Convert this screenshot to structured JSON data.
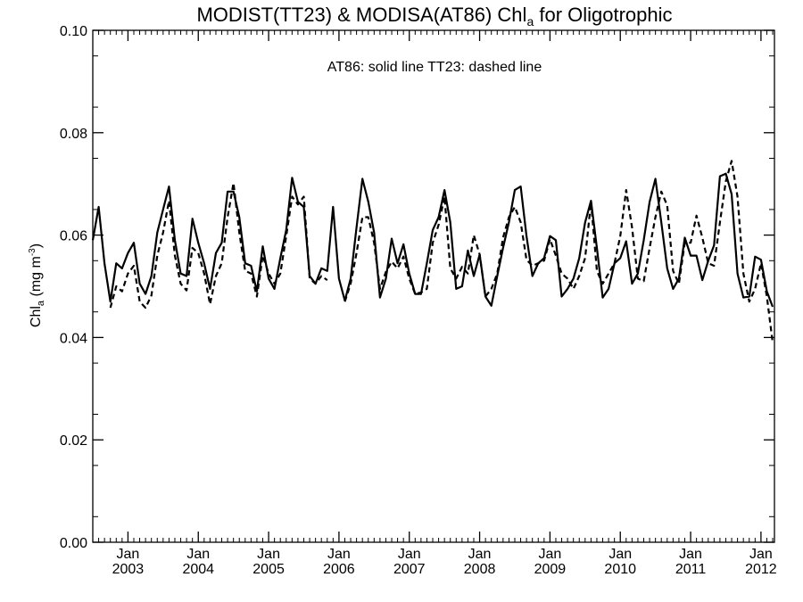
{
  "chart_data": {
    "type": "line",
    "title_main": "MODIST(TT23) & MODISA(AT86)  Chl",
    "title_sub": "a",
    "title_tail": " for Oligotrophic",
    "annotation": "AT86: solid line   TT23: dashed line",
    "ylabel_main": "Chl",
    "ylabel_sub": "a",
    "ylabel_units": " (mg m",
    "ylabel_exp": "-3",
    "ylabel_close": ")",
    "ylim": [
      0.0,
      0.1
    ],
    "y_ticks": [
      "0.00",
      "0.02",
      "0.04",
      "0.06",
      "0.08",
      "0.10"
    ],
    "x_ticks": [
      {
        "month": "Jan",
        "year": "2003"
      },
      {
        "month": "Jan",
        "year": "2004"
      },
      {
        "month": "Jan",
        "year": "2005"
      },
      {
        "month": "Jan",
        "year": "2006"
      },
      {
        "month": "Jan",
        "year": "2007"
      },
      {
        "month": "Jan",
        "year": "2008"
      },
      {
        "month": "Jan",
        "year": "2009"
      },
      {
        "month": "Jan",
        "year": "2010"
      },
      {
        "month": "Jan",
        "year": "2011"
      },
      {
        "month": "Jan",
        "year": "2012"
      }
    ],
    "x_start": "2002-07",
    "series": [
      {
        "name": "AT86",
        "style": "solid",
        "color": "#000000",
        "values": [
          0.059,
          0.0655,
          0.0545,
          0.047,
          0.0545,
          0.0535,
          0.0565,
          0.0585,
          0.0505,
          0.0485,
          0.052,
          0.0605,
          0.065,
          0.0695,
          0.059,
          0.0525,
          0.052,
          0.0632,
          0.0585,
          0.0545,
          0.0495,
          0.0565,
          0.0585,
          0.0685,
          0.0685,
          0.0635,
          0.0545,
          0.054,
          0.049,
          0.0578,
          0.0515,
          0.0495,
          0.0555,
          0.061,
          0.0712,
          0.0665,
          0.0655,
          0.052,
          0.0505,
          0.0535,
          0.053,
          0.0655,
          0.0515,
          0.0472,
          0.0515,
          0.0615,
          0.071,
          0.0665,
          0.0605,
          0.0478,
          0.0515,
          0.0593,
          0.0545,
          0.0582,
          0.0525,
          0.0485,
          0.0485,
          0.0545,
          0.061,
          0.0635,
          0.0688,
          0.0625,
          0.0495,
          0.05,
          0.057,
          0.052,
          0.0562,
          0.048,
          0.0462,
          0.052,
          0.0575,
          0.0625,
          0.0688,
          0.0695,
          0.0598,
          0.052,
          0.0545,
          0.0555,
          0.0598,
          0.059,
          0.048,
          0.0495,
          0.0515,
          0.0555,
          0.0625,
          0.0667,
          0.0575,
          0.0478,
          0.0495,
          0.0545,
          0.0555,
          0.0588,
          0.0505,
          0.0525,
          0.059,
          0.0665,
          0.071,
          0.0625,
          0.0535,
          0.0495,
          0.0515,
          0.0595,
          0.056,
          0.056,
          0.0512,
          0.055,
          0.058,
          0.0715,
          0.072,
          0.068,
          0.0525,
          0.0478,
          0.048,
          0.0558,
          0.0552,
          0.049,
          0.046
        ]
      },
      {
        "name": "TT23",
        "style": "dashed",
        "color": "#000000",
        "values": [
          null,
          null,
          null,
          0.0458,
          0.05,
          0.049,
          0.0525,
          0.054,
          0.047,
          0.0458,
          0.0482,
          0.056,
          0.0605,
          0.0667,
          0.056,
          0.0505,
          0.0492,
          0.0575,
          0.0565,
          0.0525,
          0.0465,
          0.052,
          0.0545,
          0.0635,
          0.0702,
          0.0605,
          0.053,
          0.0525,
          0.048,
          0.056,
          0.0525,
          0.0505,
          0.0525,
          0.0598,
          0.0675,
          0.066,
          0.0675,
          0.0515,
          0.0505,
          0.052,
          0.0512,
          null,
          null,
          0.047,
          0.0505,
          0.0565,
          0.0635,
          0.0635,
          0.0585,
          0.0495,
          0.0528,
          0.0548,
          0.0535,
          0.0558,
          0.0515,
          0.0485,
          0.0488,
          0.0495,
          0.0585,
          0.062,
          0.0675,
          0.0535,
          0.0515,
          0.0538,
          0.0525,
          0.06,
          0.0562,
          0.048,
          0.0495,
          0.0525,
          0.0595,
          0.0635,
          0.0655,
          0.0625,
          0.0552,
          0.054,
          0.0545,
          0.055,
          0.0592,
          0.056,
          0.0525,
          0.0515,
          0.0495,
          0.052,
          0.0555,
          0.0665,
          0.053,
          0.0505,
          0.0525,
          0.0545,
          0.0598,
          0.0688,
          0.0615,
          0.0515,
          0.051,
          0.0575,
          0.0635,
          0.0685,
          0.0658,
          0.053,
          0.0505,
          0.0585,
          0.0585,
          0.0638,
          0.0595,
          0.0545,
          0.054,
          0.0625,
          0.0705,
          0.0745,
          0.0675,
          0.0525,
          0.047,
          0.0495,
          0.0545,
          0.048,
          0.039
        ]
      }
    ],
    "grid": false,
    "legend": "none"
  }
}
